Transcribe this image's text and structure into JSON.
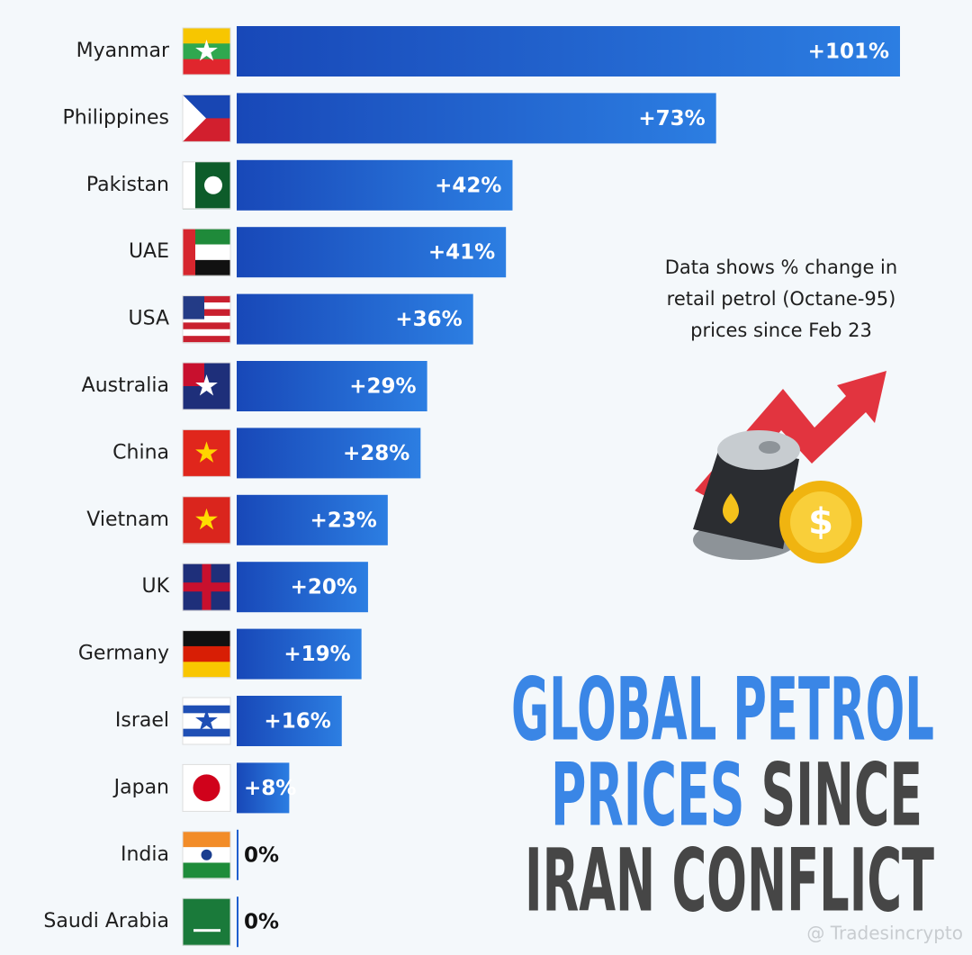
{
  "chart_data": {
    "type": "bar",
    "orientation": "horizontal",
    "title_lines": [
      [
        {
          "text": "GLOBAL PETROL",
          "color": "#3a86e6"
        }
      ],
      [
        {
          "text": "PRICES",
          "color": "#3a86e6"
        },
        {
          "text": "SINCE",
          "color": "#464646"
        }
      ],
      [
        {
          "text": "IRAN CONFLICT",
          "color": "#464646"
        }
      ]
    ],
    "annotation_lines": [
      "Data shows % change in",
      "retail petrol (Octane-95)",
      "prices since Feb 23"
    ],
    "watermark": "@ Tradesincrypto",
    "categories": [
      "Myanmar",
      "Philippines",
      "Pakistan",
      "UAE",
      "USA",
      "Australia",
      "China",
      "Vietnam",
      "UK",
      "Germany",
      "Israel",
      "Japan",
      "India",
      "Saudi Arabia"
    ],
    "values": [
      101,
      73,
      42,
      41,
      36,
      29,
      28,
      23,
      20,
      19,
      16,
      8,
      0,
      0
    ],
    "value_labels": [
      "+101%",
      "+73%",
      "+42%",
      "+41%",
      "+36%",
      "+29%",
      "+28%",
      "+23%",
      "+20%",
      "+19%",
      "+16%",
      "+8%",
      "0%",
      "0%"
    ],
    "color": "#1f5fcf",
    "xlim": [
      0,
      101
    ]
  }
}
